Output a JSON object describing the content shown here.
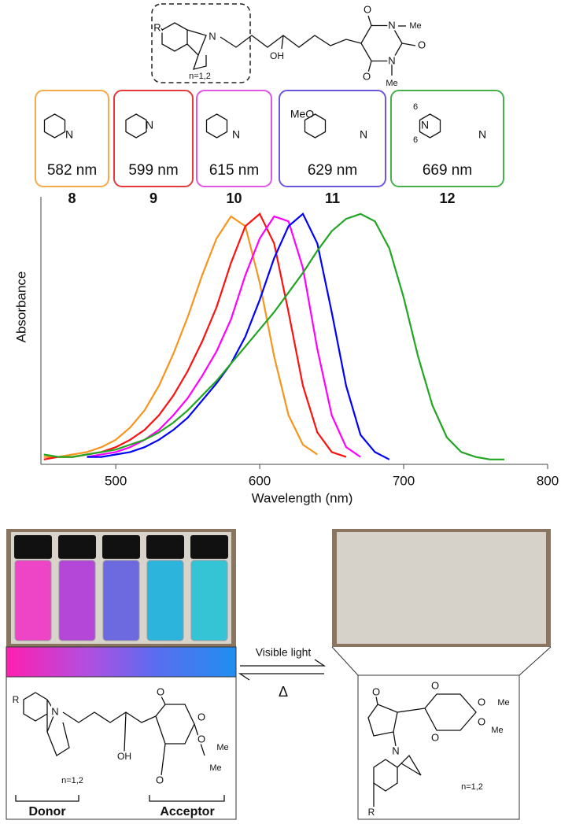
{
  "chart_data": {
    "type": "line",
    "xlabel": "Wavelength (nm)",
    "ylabel": "Absorbance",
    "x": [
      450,
      460,
      470,
      480,
      490,
      500,
      510,
      520,
      530,
      540,
      550,
      560,
      570,
      580,
      590,
      600,
      610,
      620,
      630,
      640,
      650,
      660,
      670,
      680,
      690,
      700,
      710,
      720,
      730,
      740,
      750,
      760,
      770
    ],
    "xlim": [
      448,
      800
    ],
    "xticks": [
      500,
      600,
      700,
      800
    ],
    "ylim": [
      -0.02,
      1.07
    ],
    "series": [
      {
        "name": "8",
        "label": "582 nm",
        "atoms": [
          "N"
        ],
        "color": "#f7941d",
        "box_color": "#f6a94c",
        "values": [
          0.01,
          0.01,
          0.02,
          0.03,
          0.05,
          0.08,
          0.13,
          0.2,
          0.3,
          0.43,
          0.58,
          0.75,
          0.9,
          0.99,
          0.95,
          0.72,
          0.42,
          0.18,
          0.06,
          0.02,
          null,
          null,
          null,
          null,
          null,
          null,
          null,
          null,
          null,
          null,
          null,
          null,
          null
        ]
      },
      {
        "name": "9",
        "label": "599 nm",
        "atoms": [
          "N"
        ],
        "color": "#ff1010",
        "box_color": "#e8383b",
        "values": [
          0.0,
          0.01,
          0.01,
          0.02,
          0.03,
          0.05,
          0.08,
          0.12,
          0.18,
          0.26,
          0.36,
          0.48,
          0.62,
          0.8,
          0.95,
          1.0,
          0.88,
          0.6,
          0.3,
          0.11,
          0.03,
          0.01,
          null,
          null,
          null,
          null,
          null,
          null,
          null,
          null,
          null,
          null,
          null
        ]
      },
      {
        "name": "10",
        "label": "615 nm",
        "atoms": [
          "N"
        ],
        "color": "#ff00ff",
        "box_color": "#e056e6",
        "values": [
          null,
          null,
          null,
          0.01,
          0.02,
          0.03,
          0.05,
          0.08,
          0.12,
          0.18,
          0.25,
          0.34,
          0.44,
          0.57,
          0.75,
          0.9,
          0.99,
          0.97,
          0.78,
          0.45,
          0.18,
          0.05,
          0.01,
          null,
          null,
          null,
          null,
          null,
          null,
          null,
          null,
          null,
          null
        ]
      },
      {
        "name": "11",
        "label": "629 nm",
        "atoms": [
          "MeO",
          "N"
        ],
        "color": "#0000ff",
        "box_color": "#6a57e0",
        "values": [
          null,
          null,
          null,
          0.01,
          0.01,
          0.02,
          0.03,
          0.05,
          0.08,
          0.12,
          0.17,
          0.24,
          0.31,
          0.39,
          0.5,
          0.65,
          0.82,
          0.95,
          1.0,
          0.88,
          0.6,
          0.3,
          0.1,
          0.03,
          0.0,
          null,
          null,
          null,
          null,
          null,
          null,
          null,
          null
        ]
      },
      {
        "name": "12",
        "label": "669 nm",
        "atoms": [
          "N",
          "N",
          "6",
          "6"
        ],
        "color": "#22a522",
        "box_color": "#46b04a",
        "values": [
          0.02,
          0.01,
          0.01,
          0.02,
          0.03,
          0.04,
          0.06,
          0.08,
          0.11,
          0.15,
          0.2,
          0.26,
          0.32,
          0.39,
          0.46,
          0.53,
          0.6,
          0.68,
          0.76,
          0.85,
          0.93,
          0.98,
          1.0,
          0.97,
          0.86,
          0.66,
          0.42,
          0.22,
          0.09,
          0.03,
          0.01,
          0.0,
          0.0
        ]
      }
    ]
  },
  "scheme": {
    "top_atoms": [
      "R",
      "N",
      "n=1,2",
      "OH",
      "O",
      "N",
      "Me",
      "O",
      "N",
      "Me",
      "O"
    ],
    "forward": "Visible light",
    "reverse": "Δ",
    "open_form": {
      "atoms": [
        "R",
        "N",
        "OH",
        "O",
        "O",
        "O",
        "O",
        "Me",
        "Me",
        "n=1,2"
      ],
      "donor": "Donor",
      "acceptor": "Acceptor"
    },
    "closed_form": {
      "atoms": [
        "O",
        "O",
        "O",
        "O",
        "O",
        "Me",
        "Me",
        "N",
        "n=1,2",
        "R"
      ]
    }
  }
}
